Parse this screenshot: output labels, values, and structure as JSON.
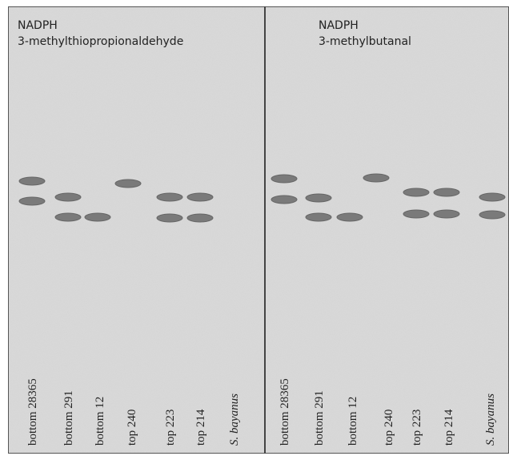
{
  "panels": [
    {
      "header": [
        "NADPH",
        "3-methylthiopropionaldehyde"
      ],
      "lanes": [
        "bottom 28365",
        "bottom 291",
        "bottom 12",
        "top 240",
        "top 223",
        "top 214",
        "S. bayanus"
      ]
    },
    {
      "header": [
        "NADPH",
        "3-methylbutanal"
      ],
      "lanes": [
        "bottom 28365",
        "bottom 291",
        "bottom 12",
        "top 240",
        "top 223",
        "top 214",
        "S. bayanus"
      ]
    }
  ]
}
